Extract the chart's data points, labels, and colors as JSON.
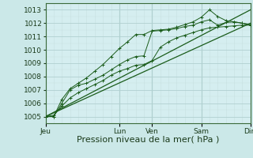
{
  "bg_color": "#cbe8e8",
  "plot_bg": "#d5eef0",
  "grid_color": "#b0d0d0",
  "grid_color2": "#c8e0e0",
  "line_color": "#1a5c1a",
  "xlabel": "Pression niveau de la mer( hPa )",
  "xlabel_fontsize": 8,
  "tick_fontsize": 6.5,
  "ylim": [
    1004.5,
    1013.5
  ],
  "yticks": [
    1005,
    1006,
    1007,
    1008,
    1009,
    1010,
    1011,
    1012,
    1013
  ],
  "xtick_labels": [
    "Jeu",
    "Lun",
    "Ven",
    "Sam",
    "Dim"
  ],
  "xtick_positions": [
    0,
    9,
    13,
    19,
    25
  ],
  "vlines_major": [
    0,
    9,
    13,
    19,
    25
  ],
  "xmax": 25,
  "series1_x": [
    0,
    1,
    2,
    3,
    4,
    5,
    6,
    7,
    8,
    9,
    10,
    11,
    12,
    13,
    14,
    15,
    16,
    17,
    18,
    19,
    20,
    21,
    22,
    23,
    24,
    25
  ],
  "series1_y": [
    1005.0,
    1005.0,
    1006.3,
    1007.1,
    1007.5,
    1007.9,
    1008.4,
    1008.9,
    1009.5,
    1010.1,
    1010.6,
    1011.15,
    1011.15,
    1011.45,
    1011.5,
    1011.55,
    1011.7,
    1011.9,
    1012.1,
    1012.45,
    1013.0,
    1012.5,
    1012.2,
    1012.1,
    1012.0,
    1011.9
  ],
  "series2_x": [
    0,
    1,
    2,
    3,
    4,
    5,
    6,
    7,
    8,
    9,
    10,
    11,
    12,
    13,
    14,
    15,
    16,
    17,
    18,
    19,
    20,
    21,
    22,
    23,
    24,
    25
  ],
  "series2_y": [
    1005.0,
    1005.0,
    1006.0,
    1007.0,
    1007.35,
    1007.5,
    1007.8,
    1008.1,
    1008.5,
    1008.9,
    1009.25,
    1009.5,
    1009.55,
    1011.4,
    1011.45,
    1011.5,
    1011.6,
    1011.75,
    1011.85,
    1012.1,
    1012.25,
    1011.85,
    1012.05,
    1012.1,
    1012.0,
    1011.85
  ],
  "series3_x": [
    0,
    1,
    2,
    3,
    4,
    5,
    6,
    7,
    8,
    9,
    10,
    11,
    12,
    13,
    14,
    15,
    16,
    17,
    18,
    19,
    20,
    21,
    22,
    23,
    24,
    25
  ],
  "series3_y": [
    1005.0,
    1005.1,
    1005.8,
    1006.4,
    1006.8,
    1007.1,
    1007.4,
    1007.7,
    1008.1,
    1008.4,
    1008.6,
    1008.85,
    1008.9,
    1009.2,
    1010.2,
    1010.6,
    1010.9,
    1011.1,
    1011.3,
    1011.5,
    1011.65,
    1011.7,
    1011.75,
    1011.8,
    1011.85,
    1011.85
  ],
  "series4_x": [
    0,
    25
  ],
  "series4_y": [
    1005.0,
    1013.0
  ],
  "series5_x": [
    0,
    25
  ],
  "series5_y": [
    1005.0,
    1012.0
  ]
}
